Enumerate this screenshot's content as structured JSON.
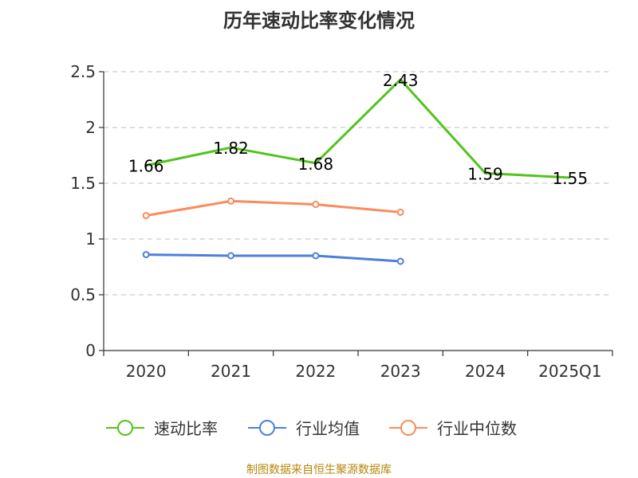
{
  "chart_data": {
    "type": "line",
    "title": "历年速动比率变化情况",
    "categories": [
      "2020",
      "2021",
      "2022",
      "2023",
      "2024",
      "2025Q1"
    ],
    "yticks": [
      "0",
      "0.5",
      "1",
      "1.5",
      "2",
      "2.5"
    ],
    "ylim": [
      0,
      2.5
    ],
    "grid": true,
    "legend_position": "bottom",
    "series": [
      {
        "name": "速动比率",
        "color": "#52c41a",
        "values": [
          1.66,
          1.82,
          1.68,
          2.43,
          1.59,
          1.55
        ],
        "labels": [
          "1.66",
          "1.82",
          "1.68",
          "2.43",
          "1.59",
          "1.55"
        ],
        "markers": false
      },
      {
        "name": "行业均值",
        "color": "#4e7fdc",
        "values": [
          0.86,
          0.85,
          0.85,
          0.8,
          null,
          null
        ],
        "markers": true
      },
      {
        "name": "行业中位数",
        "color": "#fa8c5c",
        "values": [
          1.21,
          1.34,
          1.31,
          1.24,
          null,
          null
        ],
        "markers": true
      }
    ],
    "source": "制图数据来自恒生聚源数据库"
  }
}
